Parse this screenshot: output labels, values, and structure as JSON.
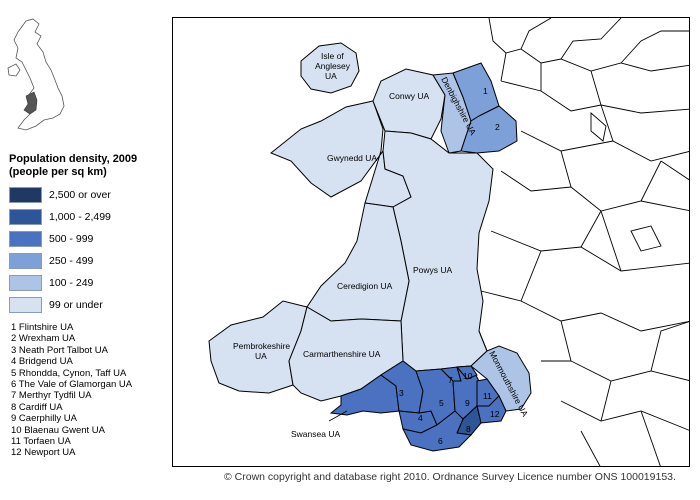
{
  "legend": {
    "title_line1": "Population density, 2009",
    "title_line2": "(people per sq km)",
    "items": [
      {
        "label": "2,500 or over",
        "color": "#1f3864"
      },
      {
        "label": "1,000 - 2,499",
        "color": "#2e5597"
      },
      {
        "label": "500 - 999",
        "color": "#4a72c0"
      },
      {
        "label": "250 - 499",
        "color": "#7ea0d8"
      },
      {
        "label": "100 - 249",
        "color": "#adc4e6"
      },
      {
        "label": "99 or under",
        "color": "#d6e2f2"
      }
    ]
  },
  "key": [
    "1 Flintshire UA",
    "2 Wrexham UA",
    "3 Neath Port Talbot UA",
    "4 Bridgend UA",
    "5 Rhondda, Cynon, Taff UA",
    "6 The Vale of Glamorgan UA",
    "7 Merthyr Tydfil UA",
    "8 Cardiff UA",
    "9 Caerphilly UA",
    "10 Blaenau Gwent UA",
    "11 Torfaen UA",
    "12 Newport UA"
  ],
  "map": {
    "labels": {
      "anglesey_1": "Isle of",
      "anglesey_2": "Anglesey",
      "anglesey_3": "UA",
      "conwy": "Conwy UA",
      "denbighshire": "Denbighshire UA",
      "gwynedd": "Gwynedd UA",
      "powys": "Powys UA",
      "ceredigion": "Ceredigion UA",
      "pembrokeshire_1": "Pembrokeshire",
      "pembrokeshire_2": "UA",
      "carmarthenshire": "Carmarthenshire UA",
      "monmouthshire": "Monmouthshire UA",
      "swansea": "Swansea UA",
      "n1": "1",
      "n2": "2",
      "n3": "3",
      "n4": "4",
      "n5": "5",
      "n6": "6",
      "n7": "7",
      "n8": "8",
      "n9": "9",
      "n10": "10",
      "n11": "11",
      "n12": "12"
    }
  },
  "copyright": "© Crown copyright and database right 2010. Ordnance Survey Licence number ONS 100019153."
}
